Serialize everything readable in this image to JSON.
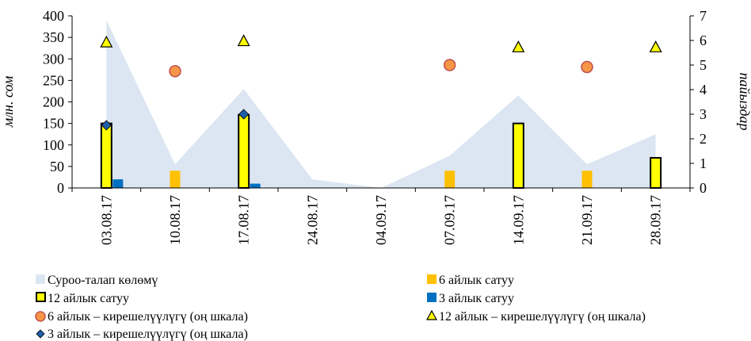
{
  "chart_data": {
    "type": "bar",
    "title": "",
    "categories": [
      "03.08.17",
      "10.08.17",
      "17.08.17",
      "24.08.17",
      "04.09.17",
      "07.09.17",
      "14.09.17",
      "21.09.17",
      "28.09.17"
    ],
    "ylabel_left": "млн. сом",
    "ylabel_right": "пайыздар",
    "ylim_left": [
      0,
      400
    ],
    "ylim_right": [
      0,
      7
    ],
    "yticks_left": [
      "0",
      "50",
      "100",
      "150",
      "200",
      "250",
      "300",
      "350",
      "400"
    ],
    "yticks_right": [
      "0",
      "1",
      "2",
      "3",
      "4",
      "5",
      "6",
      "7"
    ],
    "grid": false,
    "legend_position": "bottom",
    "series": [
      {
        "name": "Суроо-талап көлөмү",
        "type": "area",
        "axis": "left",
        "color": "#dce6f2",
        "values": [
          390,
          55,
          230,
          20,
          0,
          75,
          215,
          55,
          125
        ]
      },
      {
        "name": "6 айлык сатуу",
        "type": "bar",
        "axis": "left",
        "color": "#ffc000",
        "values": [
          null,
          40,
          null,
          null,
          null,
          40,
          null,
          40,
          null
        ]
      },
      {
        "name": "12 айлык сатуу",
        "type": "bar",
        "axis": "left",
        "color": "#ffff00",
        "values": [
          150,
          null,
          170,
          null,
          null,
          null,
          150,
          null,
          70
        ]
      },
      {
        "name": "3 айлык сатуу",
        "type": "bar",
        "axis": "left",
        "color": "#0070c0",
        "values": [
          20,
          null,
          10,
          null,
          null,
          null,
          null,
          null,
          null
        ]
      },
      {
        "name": "6 айлык – кирешелүүлүгү (оң шкала)",
        "type": "scatter",
        "marker": "circle",
        "axis": "right",
        "color": "#f79646",
        "values": [
          null,
          4.75,
          null,
          null,
          null,
          5.0,
          null,
          4.92,
          null
        ]
      },
      {
        "name": "12 айлык – кирешелүүлүгү (оң шкала)",
        "type": "scatter",
        "marker": "triangle",
        "axis": "right",
        "color": "#ffff00",
        "values": [
          5.9,
          null,
          5.95,
          null,
          null,
          null,
          5.7,
          null,
          5.7
        ]
      },
      {
        "name": "3 айлык – кирешелүүлүгү (оң шкала)",
        "type": "scatter",
        "marker": "diamond",
        "axis": "right",
        "color": "#1f5ea8",
        "values": [
          2.55,
          null,
          3.0,
          null,
          null,
          null,
          null,
          null,
          null
        ]
      }
    ]
  }
}
